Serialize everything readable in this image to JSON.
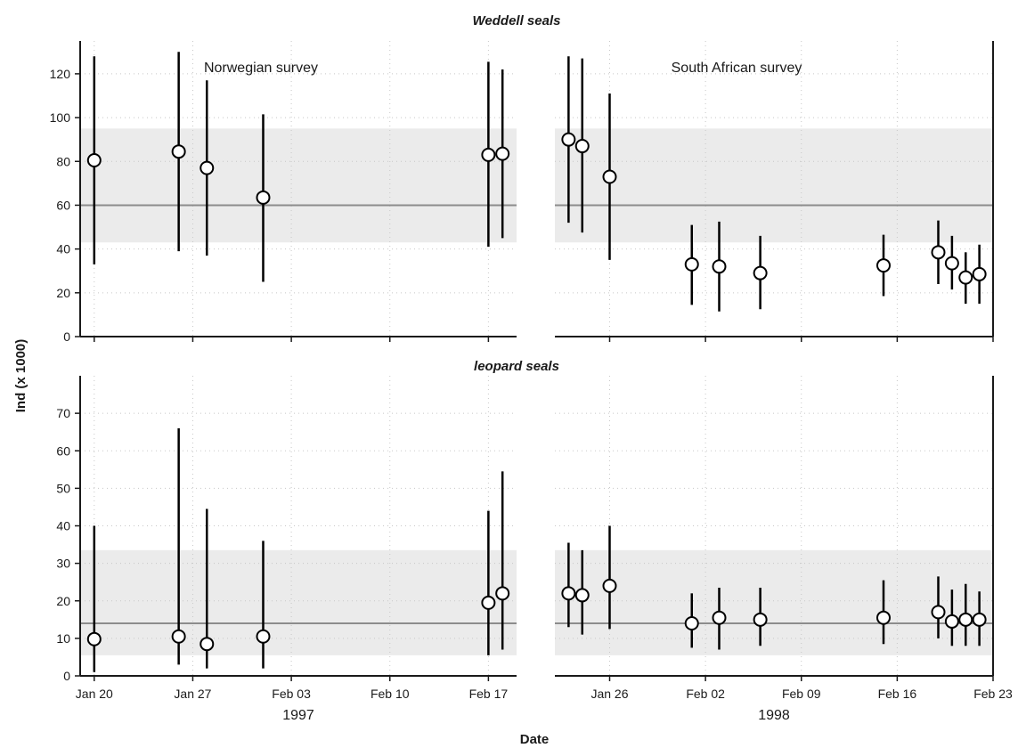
{
  "chart_data": {
    "type": "scatter",
    "ylabel": "Ind (x 1000)",
    "xlabel": "Date",
    "grid": true,
    "surveys": [
      {
        "year": "1997",
        "label": "Norwegian survey",
        "xlim": [
          "1997-01-19",
          "1997-02-19"
        ],
        "xticks": [
          {
            "date": "1997-01-20",
            "label": "Jan 20"
          },
          {
            "date": "1997-01-27",
            "label": "Jan 27"
          },
          {
            "date": "1997-02-03",
            "label": "Feb 03"
          },
          {
            "date": "1997-02-10",
            "label": "Feb 10"
          },
          {
            "date": "1997-02-17",
            "label": "Feb 17"
          }
        ]
      },
      {
        "year": "1998",
        "label": "South African survey",
        "xlim": [
          "1998-01-22",
          "1998-02-23"
        ],
        "xticks": [
          {
            "date": "1998-01-26",
            "label": "Jan 26"
          },
          {
            "date": "1998-02-02",
            "label": "Feb 02"
          },
          {
            "date": "1998-02-09",
            "label": "Feb 09"
          },
          {
            "date": "1998-02-16",
            "label": "Feb 16"
          },
          {
            "date": "1998-02-23",
            "label": "Feb 23"
          }
        ]
      }
    ],
    "panels": [
      {
        "title": "Weddell seals",
        "ylim": [
          0,
          135
        ],
        "yticks": [
          0,
          20,
          40,
          60,
          80,
          100,
          120
        ],
        "mean": 60,
        "band": [
          43,
          95
        ],
        "series": [
          [
            {
              "x": "1997-01-20",
              "y": 80.5,
              "lo": 33,
              "hi": 128
            },
            {
              "x": "1997-01-26",
              "y": 84.5,
              "lo": 39,
              "hi": 130
            },
            {
              "x": "1997-01-28",
              "y": 77,
              "lo": 37,
              "hi": 117
            },
            {
              "x": "1997-02-01",
              "y": 63.5,
              "lo": 25,
              "hi": 101.5
            },
            {
              "x": "1997-02-17",
              "y": 83,
              "lo": 41,
              "hi": 125.5
            },
            {
              "x": "1997-02-18",
              "y": 83.5,
              "lo": 45,
              "hi": 122
            }
          ],
          [
            {
              "x": "1998-01-23",
              "y": 90,
              "lo": 52,
              "hi": 128
            },
            {
              "x": "1998-01-24",
              "y": 87,
              "lo": 47.5,
              "hi": 127
            },
            {
              "x": "1998-01-26",
              "y": 73,
              "lo": 35,
              "hi": 111
            },
            {
              "x": "1998-02-01",
              "y": 33,
              "lo": 14.5,
              "hi": 51
            },
            {
              "x": "1998-02-03",
              "y": 32,
              "lo": 11.5,
              "hi": 52.5
            },
            {
              "x": "1998-02-06",
              "y": 29,
              "lo": 12.5,
              "hi": 46
            },
            {
              "x": "1998-02-15",
              "y": 32.5,
              "lo": 18.5,
              "hi": 46.5
            },
            {
              "x": "1998-02-19",
              "y": 38.5,
              "lo": 24,
              "hi": 53
            },
            {
              "x": "1998-02-20",
              "y": 33.5,
              "lo": 21.5,
              "hi": 46
            },
            {
              "x": "1998-02-21",
              "y": 27,
              "lo": 15,
              "hi": 38.5
            },
            {
              "x": "1998-02-22",
              "y": 28.5,
              "lo": 15,
              "hi": 42
            }
          ]
        ]
      },
      {
        "title": "leopard seals",
        "ylim": [
          0,
          80
        ],
        "yticks": [
          0,
          10,
          20,
          30,
          40,
          50,
          60,
          70
        ],
        "mean": 14,
        "band": [
          5.5,
          33.5
        ],
        "series": [
          [
            {
              "x": "1997-01-20",
              "y": 9.8,
              "lo": 1,
              "hi": 40
            },
            {
              "x": "1997-01-26",
              "y": 10.5,
              "lo": 3,
              "hi": 66
            },
            {
              "x": "1997-01-28",
              "y": 8.5,
              "lo": 2,
              "hi": 44.5
            },
            {
              "x": "1997-02-01",
              "y": 10.5,
              "lo": 2,
              "hi": 36
            },
            {
              "x": "1997-02-17",
              "y": 19.5,
              "lo": 5.5,
              "hi": 44
            },
            {
              "x": "1997-02-18",
              "y": 22,
              "lo": 7,
              "hi": 54.5
            }
          ],
          [
            {
              "x": "1998-01-23",
              "y": 22,
              "lo": 13,
              "hi": 35.5
            },
            {
              "x": "1998-01-24",
              "y": 21.5,
              "lo": 11,
              "hi": 33.5
            },
            {
              "x": "1998-01-26",
              "y": 24,
              "lo": 12.5,
              "hi": 40
            },
            {
              "x": "1998-02-01",
              "y": 14,
              "lo": 7.5,
              "hi": 22
            },
            {
              "x": "1998-02-03",
              "y": 15.5,
              "lo": 7,
              "hi": 23.5
            },
            {
              "x": "1998-02-06",
              "y": 15,
              "lo": 8,
              "hi": 23.5
            },
            {
              "x": "1998-02-15",
              "y": 15.5,
              "lo": 8.5,
              "hi": 25.5
            },
            {
              "x": "1998-02-19",
              "y": 17,
              "lo": 10,
              "hi": 26.5
            },
            {
              "x": "1998-02-20",
              "y": 14.5,
              "lo": 8,
              "hi": 23
            },
            {
              "x": "1998-02-21",
              "y": 15,
              "lo": 8,
              "hi": 24.5
            },
            {
              "x": "1998-02-22",
              "y": 15,
              "lo": 8,
              "hi": 22.5
            }
          ]
        ]
      }
    ]
  },
  "colors": {
    "band": "#ebebeb",
    "mean_line": "#8c8c8c",
    "grid": "#c8c8c8",
    "axis": "#1a1a1a",
    "marker_fill": "#ffffff",
    "marker_stroke": "#000000"
  }
}
